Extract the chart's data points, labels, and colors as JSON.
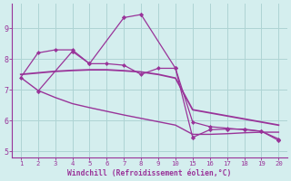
{
  "background_color": "#d4eeee",
  "grid_color": "#aed4d4",
  "line_color": "#993399",
  "xlabel": "Windchill (Refroidissement éolien,°C)",
  "xlabel_color": "#993399",
  "tick_color": "#993399",
  "ylim": [
    4.8,
    9.8
  ],
  "yticks": [
    5,
    6,
    7,
    8,
    9
  ],
  "xtick_positions": [
    1,
    2,
    3,
    4,
    5,
    6,
    7,
    8,
    9,
    10,
    15,
    16,
    17,
    18,
    19,
    20
  ],
  "series": [
    {
      "x": [
        1,
        2,
        3,
        4,
        5,
        6,
        7,
        8,
        9,
        10,
        15,
        16,
        17,
        18,
        19,
        20
      ],
      "y": [
        7.4,
        8.2,
        8.3,
        8.3,
        7.85,
        7.85,
        7.8,
        7.5,
        7.7,
        7.7,
        5.95,
        5.8,
        5.75,
        5.7,
        5.65,
        5.4
      ],
      "marker": "D",
      "markersize": 2.0,
      "linewidth": 0.9,
      "connect_gap": false
    },
    {
      "x": [
        1,
        2,
        3,
        4,
        5,
        6,
        7,
        8,
        9,
        10,
        15,
        16,
        17,
        18,
        19,
        20
      ],
      "y": [
        7.5,
        7.55,
        7.6,
        7.63,
        7.65,
        7.65,
        7.62,
        7.58,
        7.5,
        7.38,
        6.35,
        6.25,
        6.15,
        6.05,
        5.95,
        5.85
      ],
      "marker": null,
      "markersize": 0,
      "linewidth": 1.3,
      "connect_gap": true
    },
    {
      "x": [
        1,
        2,
        3,
        4,
        5,
        6,
        7,
        8,
        9,
        10,
        15,
        16,
        17,
        18,
        19,
        20
      ],
      "y": [
        7.4,
        6.98,
        6.75,
        6.55,
        6.42,
        6.3,
        6.18,
        6.07,
        5.96,
        5.85,
        5.55,
        5.55,
        5.57,
        5.6,
        5.62,
        5.62
      ],
      "marker": null,
      "markersize": 0,
      "linewidth": 1.0,
      "connect_gap": true
    },
    {
      "x": [
        2,
        4,
        5,
        7,
        8,
        10,
        15,
        16,
        17,
        18,
        19,
        20
      ],
      "y": [
        6.95,
        8.25,
        7.85,
        9.35,
        9.45,
        7.7,
        5.45,
        5.7,
        5.72,
        5.72,
        5.65,
        5.35
      ],
      "marker": "D",
      "markersize": 2.2,
      "linewidth": 0.9,
      "connect_gap": false
    }
  ],
  "xmap": {
    "1": 0,
    "2": 1,
    "3": 2,
    "4": 3,
    "5": 4,
    "6": 5,
    "7": 6,
    "8": 7,
    "9": 8,
    "10": 9,
    "15": 10,
    "16": 11,
    "17": 12,
    "18": 13,
    "19": 14,
    "20": 15
  }
}
